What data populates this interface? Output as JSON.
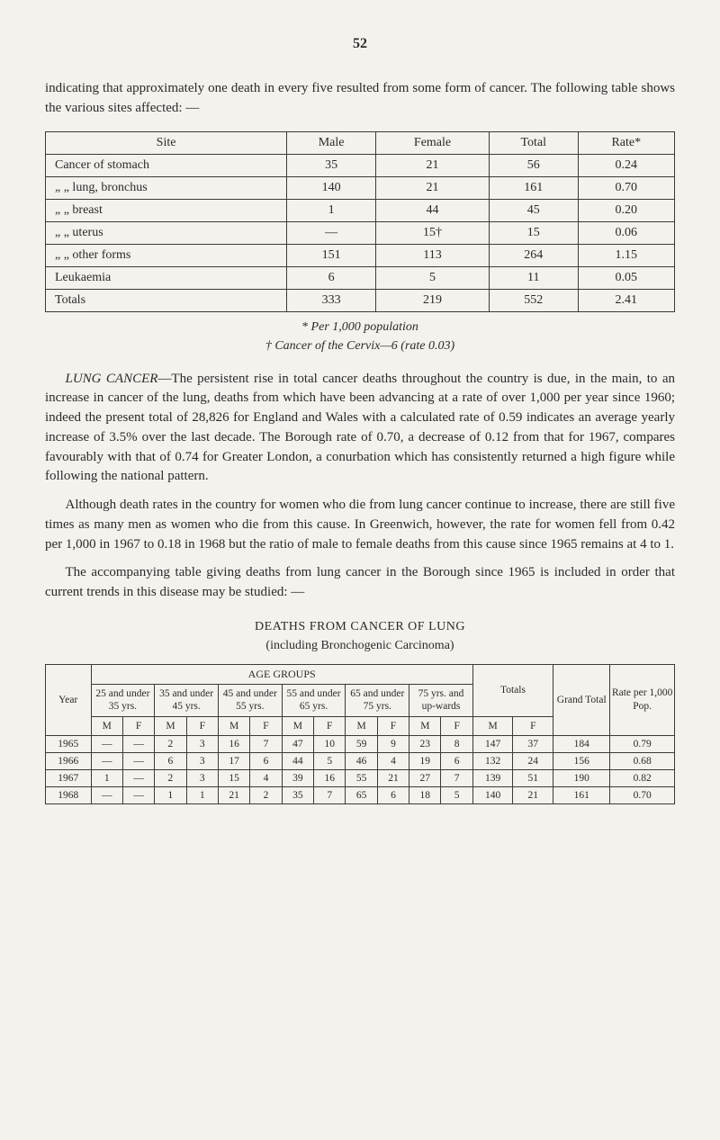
{
  "page_number": "52",
  "para1_a": "indicating that approximately one death in every five resulted from some form of cancer. The following table shows the various sites affected: —",
  "table1": {
    "headers": [
      "Site",
      "Male",
      "Female",
      "Total",
      "Rate*"
    ],
    "rows": [
      [
        "Cancer of stomach",
        "35",
        "21",
        "56",
        "0.24"
      ],
      [
        "„ „ lung, bronchus",
        "140",
        "21",
        "161",
        "0.70"
      ],
      [
        "„ „ breast",
        "1",
        "44",
        "45",
        "0.20"
      ],
      [
        "„ „ uterus",
        "—",
        "15†",
        "15",
        "0.06"
      ],
      [
        "„ „ other forms",
        "151",
        "113",
        "264",
        "1.15"
      ],
      [
        "Leukaemia",
        "6",
        "5",
        "11",
        "0.05"
      ]
    ],
    "totals": [
      "Totals",
      "333",
      "219",
      "552",
      "2.41"
    ]
  },
  "footnote1": "* Per 1,000 population",
  "footnote2": "† Cancer of the Cervix—6 (rate 0.03)",
  "para2_lead": "LUNG CANCER",
  "para2_body": "—The persistent rise in total cancer deaths throughout the country is due, in the main, to an increase in cancer of the lung, deaths from which have been advancing at a rate of over 1,000 per year since 1960; indeed the present total of 28,826 for England and Wales with a calculated rate of 0.59 indicates an average yearly increase of 3.5% over the last decade. The Borough rate of 0.70, a decrease of 0.12 from that for 1967, compares favourably with that of 0.74 for Greater London, a conurbation which has consistently returned a high figure while following the national pattern.",
  "para3": "Although death rates in the country for women who die from lung cancer continue to increase, there are still five times as many men as women who die from this cause. In Greenwich, however, the rate for women fell from 0.42 per 1,000 in 1967 to 0.18 in 1968 but the ratio of male to female deaths from this cause since 1965 remains at 4 to 1.",
  "para4": "The accompanying table giving deaths from lung cancer in the Borough since 1965 is included in order that current trends in this disease may be studied: —",
  "section_heading_caps": "DEATHS FROM CANCER OF LUNG",
  "section_heading_sub": "(including Bronchogenic Carcinoma)",
  "table2": {
    "top_label": "AGE GROUPS",
    "year_label": "Year",
    "age_headers": [
      "25 and under 35 yrs.",
      "35 and under 45 yrs.",
      "45 and under 55 yrs.",
      "55 and under 65 yrs.",
      "65 and under 75 yrs.",
      "75 yrs. and up-wards"
    ],
    "totals_label": "Totals",
    "grand_total_label": "Grand Total",
    "rate_label": "Rate per 1,000 Pop.",
    "mf": [
      "M",
      "F"
    ],
    "rows": [
      {
        "year": "1965",
        "cells": [
          "—",
          "—",
          "2",
          "3",
          "16",
          "7",
          "47",
          "10",
          "59",
          "9",
          "23",
          "8"
        ],
        "totM": "147",
        "totF": "37",
        "grand": "184",
        "rate": "0.79"
      },
      {
        "year": "1966",
        "cells": [
          "—",
          "—",
          "6",
          "3",
          "17",
          "6",
          "44",
          "5",
          "46",
          "4",
          "19",
          "6"
        ],
        "totM": "132",
        "totF": "24",
        "grand": "156",
        "rate": "0.68"
      },
      {
        "year": "1967",
        "cells": [
          "1",
          "—",
          "2",
          "3",
          "15",
          "4",
          "39",
          "16",
          "55",
          "21",
          "27",
          "7"
        ],
        "totM": "139",
        "totF": "51",
        "grand": "190",
        "rate": "0.82"
      },
      {
        "year": "1968",
        "cells": [
          "—",
          "—",
          "1",
          "1",
          "21",
          "2",
          "35",
          "7",
          "65",
          "6",
          "18",
          "5"
        ],
        "totM": "140",
        "totF": "21",
        "grand": "161",
        "rate": "0.70"
      }
    ]
  }
}
